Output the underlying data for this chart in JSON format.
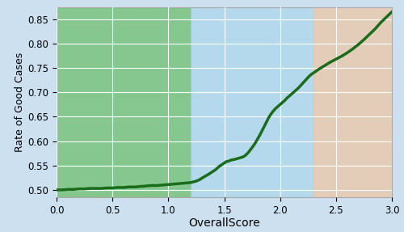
{
  "xlabel": "OverallScore",
  "ylabel": "Rate of Good Cases",
  "xlim": [
    0.0,
    3.0
  ],
  "ylim": [
    0.485,
    0.875
  ],
  "yticks": [
    0.5,
    0.55,
    0.6,
    0.65,
    0.7,
    0.75,
    0.8,
    0.85
  ],
  "xticks": [
    0.0,
    0.5,
    1.0,
    1.5,
    2.0,
    2.5,
    3.0
  ],
  "green_region": [
    0.0,
    1.2
  ],
  "blue_region": [
    1.2,
    2.3
  ],
  "orange_region": [
    2.3,
    3.0
  ],
  "green_color": "#6dbf6d",
  "blue_color": "#a8d4ea",
  "orange_color": "#f2c49a",
  "line_color": "#1a6b1a",
  "line_width": 2.5,
  "fig_bg_color": "#cce0f0",
  "axes_bg_color": "#cce0f0",
  "grid_color": "#ffffff",
  "green_alpha": 0.75,
  "blue_alpha": 0.65,
  "orange_alpha": 0.65,
  "x_data": [
    0.0,
    0.05,
    0.1,
    0.15,
    0.2,
    0.25,
    0.3,
    0.35,
    0.4,
    0.45,
    0.5,
    0.55,
    0.6,
    0.65,
    0.7,
    0.75,
    0.8,
    0.85,
    0.9,
    0.95,
    1.0,
    1.05,
    1.1,
    1.15,
    1.2,
    1.25,
    1.28,
    1.3,
    1.33,
    1.36,
    1.38,
    1.4,
    1.42,
    1.44,
    1.46,
    1.48,
    1.5,
    1.52,
    1.54,
    1.56,
    1.58,
    1.6,
    1.63,
    1.66,
    1.68,
    1.7,
    1.72,
    1.74,
    1.76,
    1.78,
    1.8,
    1.82,
    1.84,
    1.86,
    1.88,
    1.9,
    1.92,
    1.94,
    1.96,
    1.98,
    2.0,
    2.02,
    2.04,
    2.06,
    2.08,
    2.1,
    2.12,
    2.14,
    2.16,
    2.18,
    2.2,
    2.22,
    2.24,
    2.26,
    2.28,
    2.3,
    2.35,
    2.4,
    2.45,
    2.5,
    2.55,
    2.6,
    2.65,
    2.7,
    2.75,
    2.8,
    2.85,
    2.9,
    2.95,
    3.0
  ],
  "y_data": [
    0.5,
    0.5,
    0.501,
    0.501,
    0.502,
    0.502,
    0.503,
    0.503,
    0.503,
    0.504,
    0.504,
    0.505,
    0.505,
    0.506,
    0.506,
    0.507,
    0.508,
    0.509,
    0.509,
    0.51,
    0.511,
    0.512,
    0.513,
    0.514,
    0.515,
    0.518,
    0.521,
    0.524,
    0.528,
    0.532,
    0.535,
    0.538,
    0.541,
    0.545,
    0.549,
    0.552,
    0.555,
    0.558,
    0.559,
    0.561,
    0.562,
    0.563,
    0.565,
    0.567,
    0.569,
    0.573,
    0.578,
    0.584,
    0.59,
    0.597,
    0.605,
    0.613,
    0.622,
    0.631,
    0.64,
    0.649,
    0.656,
    0.662,
    0.667,
    0.671,
    0.675,
    0.679,
    0.683,
    0.688,
    0.692,
    0.696,
    0.7,
    0.704,
    0.708,
    0.713,
    0.718,
    0.723,
    0.728,
    0.733,
    0.737,
    0.74,
    0.748,
    0.755,
    0.762,
    0.768,
    0.774,
    0.781,
    0.789,
    0.798,
    0.808,
    0.819,
    0.83,
    0.843,
    0.854,
    0.865
  ]
}
